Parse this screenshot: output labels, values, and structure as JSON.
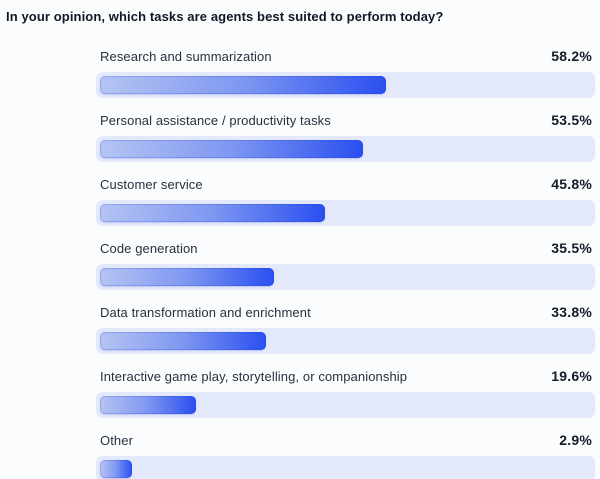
{
  "header": {
    "title": "In your opinion, which tasks are agents best suited to perform today?"
  },
  "chart_data": {
    "type": "bar",
    "orientation": "horizontal",
    "title": "In your opinion, which tasks are agents best suited to perform today?",
    "categories": [
      "Research and summarization",
      "Personal assistance / productivity tasks",
      "Customer service",
      "Code generation",
      "Data transformation and enrichment",
      "Interactive game play, storytelling, or companionship",
      "Other"
    ],
    "values": [
      58.2,
      53.5,
      45.8,
      35.5,
      33.8,
      19.6,
      2.9
    ],
    "value_labels": [
      "58.2%",
      "53.5%",
      "45.8%",
      "35.5%",
      "33.8%",
      "19.6%",
      "2.9%"
    ],
    "xlabel": "",
    "ylabel": "",
    "xlim": [
      0,
      100
    ],
    "grid": false,
    "legend_position": "none",
    "colors": {
      "background": "#fbfcfe",
      "track": "#e3e9fa",
      "bar_gradient_start": "#b6c4f2",
      "bar_gradient_end": "#2a4ff0",
      "title_text": "#0e1826",
      "category_text": "#26303f",
      "value_text": "#121c2a"
    }
  }
}
